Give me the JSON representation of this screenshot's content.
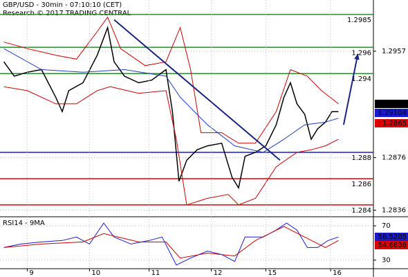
{
  "chart_data": [
    {
      "type": "line",
      "title": "GBP/USD - 30min - 07:10:10 (CET)",
      "subtitle": "Research © 2017 TRADING CENTRAL",
      "xlim": [
        0,
        288
      ],
      "ylim": [
        1.2831,
        1.2996
      ],
      "yticks": [
        1.2957,
        1.2876,
        1.2836
      ],
      "grid": true,
      "series": [
        {
          "color": "#000000",
          "x": [
            3,
            11,
            21,
            32,
            43,
            48,
            53,
            64,
            75,
            83,
            88,
            96,
            107,
            117,
            128,
            133,
            138,
            144,
            152,
            160,
            171,
            179,
            184,
            189,
            197,
            205,
            213,
            219,
            224,
            229,
            235,
            240,
            245,
            251,
            256,
            261
          ],
          "values": [
            1.2949,
            1.2938,
            1.2941,
            1.2943,
            1.2922,
            1.2911,
            1.2927,
            1.2933,
            1.2954,
            1.2975,
            1.2949,
            1.2938,
            1.2933,
            1.2935,
            1.2943,
            1.2911,
            1.2858,
            1.2874,
            1.2882,
            1.2885,
            1.2887,
            1.2861,
            1.2853,
            1.2877,
            1.288,
            1.2885,
            1.2901,
            1.2922,
            1.2933,
            1.2917,
            1.2909,
            1.289,
            1.2898,
            1.2903,
            1.2911,
            1.2911
          ]
        },
        {
          "color": "#cc0000",
          "x": [
            3,
            21,
            43,
            59,
            75,
            83,
            93,
            112,
            128,
            139,
            147,
            155,
            171,
            184,
            197,
            213,
            224,
            237,
            248,
            261
          ],
          "values": [
            1.2964,
            1.2959,
            1.2954,
            1.2951,
            1.2972,
            1.2983,
            1.2959,
            1.2946,
            1.2949,
            1.2975,
            1.2943,
            1.2895,
            1.2895,
            1.2887,
            1.2887,
            1.2911,
            1.2943,
            1.2938,
            1.2927,
            1.2917
          ]
        },
        {
          "color": "#cc0000",
          "x": [
            3,
            21,
            43,
            59,
            75,
            85,
            107,
            128,
            136,
            144,
            160,
            176,
            184,
            197,
            213,
            229,
            240,
            251,
            261
          ],
          "values": [
            1.293,
            1.2927,
            1.2917,
            1.2917,
            1.2927,
            1.293,
            1.2925,
            1.2927,
            1.289,
            1.284,
            1.2845,
            1.2848,
            1.284,
            1.2845,
            1.2869,
            1.288,
            1.2882,
            1.2885,
            1.289
          ]
        },
        {
          "color": "#1f3fbf",
          "x": [
            3,
            32,
            64,
            96,
            128,
            139,
            160,
            181,
            203,
            219,
            235,
            251,
            261
          ],
          "values": [
            1.2959,
            1.2943,
            1.2941,
            1.2943,
            1.2938,
            1.2922,
            1.2901,
            1.2885,
            1.288,
            1.289,
            1.2901,
            1.2903,
            1.2906
          ]
        }
      ],
      "levels": [
        {
          "value": 1.2985,
          "color": "#2e8b2e"
        },
        {
          "value": 1.296,
          "color": "#2e8b2e"
        },
        {
          "value": 1.294,
          "color": "#2e8b2e"
        },
        {
          "value": 1.288,
          "color": "#1a1acc"
        },
        {
          "value": 1.286,
          "color": "#dd0000"
        },
        {
          "value": 1.284,
          "color": "#dd0000"
        }
      ],
      "trendline": {
        "color": "#1a237e",
        "x": [
          88,
          216
        ],
        "values": [
          1.2981,
          1.2874
        ]
      },
      "arrow": {
        "color": "#1a237e",
        "x": [
          265,
          276
        ],
        "values": [
          1.2901,
          1.2955
        ]
      },
      "last_values": [
        {
          "value": 1.2916,
          "color": "#000000"
        },
        {
          "value": 1.29104,
          "color": "#1a1acc"
        },
        {
          "value": 1.2865,
          "color": "#dd0000"
        }
      ]
    },
    {
      "type": "line",
      "title": "RSI14 - 9MA",
      "xlim": [
        0,
        288
      ],
      "ylim": [
        20,
        79
      ],
      "yticks": [
        70,
        30
      ],
      "xticks": [
        {
          "value": 21,
          "label": "9"
        },
        {
          "value": 69,
          "label": "10"
        },
        {
          "value": 115,
          "label": "11"
        },
        {
          "value": 163,
          "label": "12"
        },
        {
          "value": 205,
          "label": "15"
        },
        {
          "value": 255,
          "label": "16"
        }
      ],
      "grid": true,
      "series": [
        {
          "color": "#1a1acc",
          "x": [
            3,
            16,
            32,
            48,
            59,
            69,
            80,
            88,
            101,
            115,
            125,
            136,
            147,
            160,
            171,
            181,
            189,
            203,
            213,
            221,
            229,
            237,
            245,
            253,
            261
          ],
          "values": [
            44.7,
            48.8,
            51.2,
            52.9,
            56.9,
            48.8,
            73.3,
            56.9,
            48.8,
            52.9,
            56.9,
            24.3,
            32.4,
            40.6,
            36.5,
            28.4,
            56.9,
            56.9,
            65.1,
            73.3,
            65.1,
            44.7,
            44.7,
            52.9,
            56.9
          ]
        },
        {
          "color": "#cc0000",
          "x": [
            3,
            32,
            64,
            80,
            107,
            128,
            139,
            160,
            181,
            197,
            219,
            235,
            251,
            261
          ],
          "values": [
            44.7,
            48.8,
            51.2,
            61.0,
            51.2,
            51.2,
            32.4,
            38.2,
            34.9,
            52.9,
            69.2,
            56.9,
            44.7,
            52.9
          ]
        }
      ],
      "last_values": [
        {
          "value": 58.5205,
          "color": "#1a1acc"
        },
        {
          "value": 54.6836,
          "color": "#dd0000"
        }
      ]
    }
  ]
}
